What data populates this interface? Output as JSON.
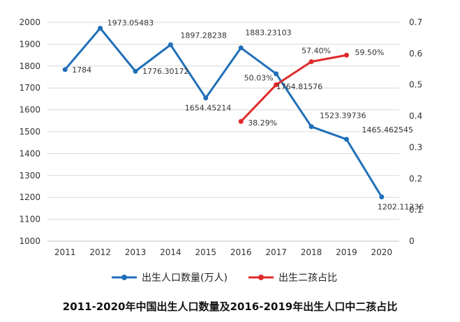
{
  "chart_data": {
    "type": "line",
    "title": "2011-2020年中国出生人口数量及2016-2019年出生人口中二孩占比",
    "categories": [
      "2011",
      "2012",
      "2013",
      "2014",
      "2015",
      "2016",
      "2017",
      "2018",
      "2019",
      "2020"
    ],
    "y_left": {
      "ticks": [
        "1000",
        "1100",
        "1200",
        "1300",
        "1400",
        "1500",
        "1600",
        "1700",
        "1800",
        "1900",
        "2000"
      ],
      "ylim": [
        1000,
        2000
      ]
    },
    "y_right": {
      "ticks": [
        "0",
        "0.1",
        "0.2",
        "0.3",
        "0.4",
        "0.5",
        "0.6",
        "0.7"
      ],
      "ylim": [
        0,
        0.7
      ]
    },
    "grid": true,
    "legend_position": "bottom",
    "series": [
      {
        "name": "出生人口数量(万人)",
        "axis": "left",
        "color": "#1f6fb8",
        "x": [
          "2011",
          "2012",
          "2013",
          "2014",
          "2015",
          "2016",
          "2017",
          "2018",
          "2019",
          "2020"
        ],
        "values": [
          1784,
          1973.05483,
          1776.30172,
          1897.28238,
          1654.45214,
          1883.23103,
          1764.81576,
          1523.39736,
          1465.462545,
          1202.11236
        ],
        "labels": [
          "1784",
          "1973.05483",
          "1776.30172",
          "1897.28238",
          "1654.45214",
          "1883.23103",
          "1764.81576",
          "1523.39736",
          "1465.462545",
          "1202.11236"
        ]
      },
      {
        "name": "出生二孩占比",
        "axis": "right",
        "color": "#e02a2a",
        "x": [
          "2016",
          "2017",
          "2018",
          "2019"
        ],
        "values": [
          0.3829,
          0.5003,
          0.574,
          0.595
        ],
        "labels": [
          "38.29%",
          "50.03%",
          "57.40%",
          "59.50%"
        ]
      }
    ]
  }
}
